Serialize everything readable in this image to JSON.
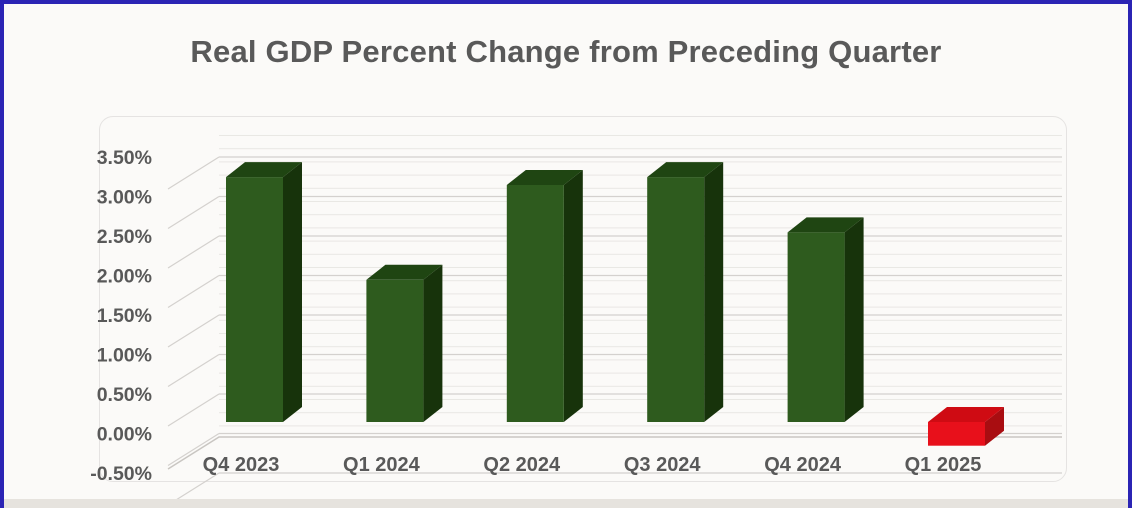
{
  "chart_title": "Real GDP Percent Change from Preceding Quarter",
  "chart_data": {
    "type": "bar",
    "effect": "3d-column",
    "title": "Real GDP Percent Change from Preceding Quarter",
    "categories": [
      "Q4 2023",
      "Q1 2024",
      "Q2 2024",
      "Q3 2024",
      "Q4 2024",
      "Q1 2025"
    ],
    "values": [
      3.1,
      1.8,
      3.0,
      3.1,
      2.4,
      -0.3
    ],
    "unit": "percent",
    "xlabel": "",
    "ylabel": "",
    "ylim": [
      -0.5,
      3.5
    ],
    "ytick_step": 0.5,
    "ytick_labels": [
      "3.50%",
      "3.00%",
      "2.50%",
      "2.00%",
      "1.50%",
      "1.00%",
      "0.50%",
      "0.00%",
      "-0.50%"
    ],
    "grid": true,
    "legend": false
  },
  "colors": {
    "title_text": "#595959",
    "axis_text": "#595959",
    "gridline": "#d4d1ce",
    "wall_texture": "rgba(160,155,150,0.20)",
    "floor_line": "#c9c6c2",
    "frame_border": "#2b24b4",
    "bottom_strip": "#e6e3de",
    "positive_bar": {
      "front": "#2e5b1e",
      "top": "#1f4512",
      "side": "#17330b"
    },
    "negative_bar": {
      "front": "#e8101b",
      "top": "#cf0b13",
      "side": "#a90d11"
    }
  }
}
